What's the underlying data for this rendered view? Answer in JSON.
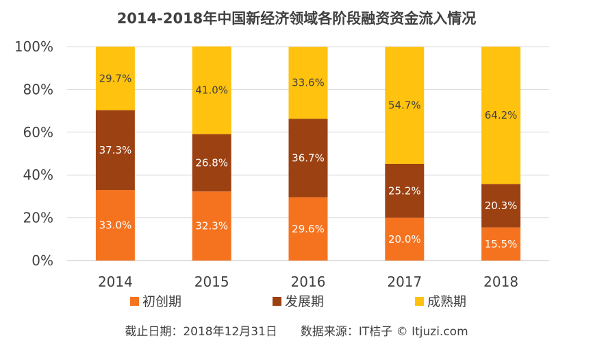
{
  "chart_data": {
    "type": "bar",
    "stacked": true,
    "title": "2014-2018年中国新经济领域各阶段融资资金流入情况",
    "categories": [
      "2014",
      "2015",
      "2016",
      "2017",
      "2018"
    ],
    "series": [
      {
        "name": "初创期",
        "color": "#f5731f",
        "label_color": "#ffffff",
        "values": [
          33.0,
          32.3,
          29.6,
          20.0,
          15.5
        ],
        "labels": [
          "33.0%",
          "32.3%",
          "29.6%",
          "20.0%",
          "15.5%"
        ]
      },
      {
        "name": "发展期",
        "color": "#9c4112",
        "label_color": "#ffffff",
        "values": [
          37.3,
          26.8,
          36.7,
          25.2,
          20.3
        ],
        "labels": [
          "37.3%",
          "26.8%",
          "36.7%",
          "25.2%",
          "20.3%"
        ]
      },
      {
        "name": "成熟期",
        "color": "#ffc20e",
        "label_color": "#404040",
        "values": [
          29.7,
          41.0,
          33.6,
          54.7,
          64.2
        ],
        "labels": [
          "29.7%",
          "41.0%",
          "33.6%",
          "54.7%",
          "64.2%"
        ]
      }
    ],
    "ylim": [
      0,
      100
    ],
    "yticks": [
      "0%",
      "20%",
      "40%",
      "60%",
      "80%",
      "100%"
    ],
    "grid": true,
    "legend_position": "bottom",
    "xlabel": "",
    "ylabel": ""
  },
  "footnote": "截止日期：2018年12月31日　　数据来源：IT桔子 © Itjuzi.com"
}
